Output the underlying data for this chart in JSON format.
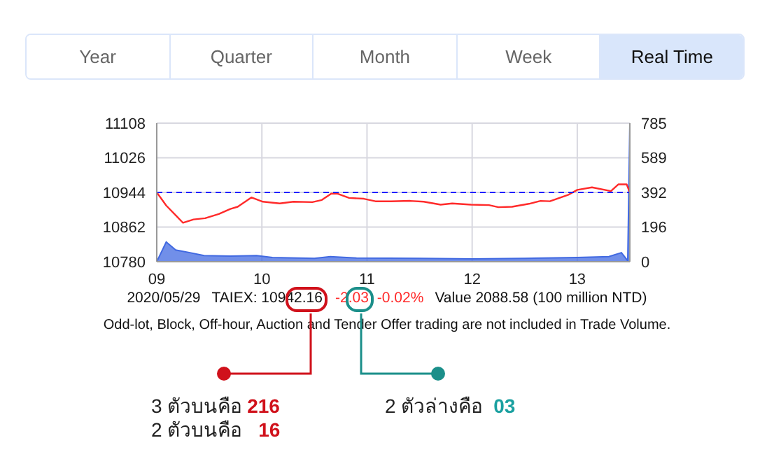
{
  "chart_data": {
    "type": "line",
    "series": [
      {
        "type": "line",
        "color": "#ff2a2a",
        "x": [
          9,
          9.09,
          9.25,
          9.35,
          9.46,
          9.59,
          9.7,
          9.77,
          9.9,
          10.01,
          10.17,
          10.3,
          10.48,
          10.57,
          10.66,
          10.72,
          10.83,
          10.97,
          11.08,
          11.23,
          11.41,
          11.54,
          11.7,
          11.81,
          11.99,
          12.16,
          12.25,
          12.38,
          12.54,
          12.65,
          12.74,
          12.92,
          13,
          13.14,
          13.32,
          13.39,
          13.47,
          13.5
        ],
        "values": [
          10944,
          10913,
          10872,
          10880,
          10883,
          10893,
          10905,
          10910,
          10932,
          10922,
          10918,
          10922,
          10921,
          10926,
          10941,
          10941,
          10931,
          10929,
          10923,
          10923,
          10924,
          10922,
          10915,
          10918,
          10915,
          10914,
          10909,
          10910,
          10917,
          10924,
          10923,
          10939,
          10950,
          10956,
          10947,
          10963,
          10963,
          10944
        ]
      },
      {
        "type": "area",
        "axis": "y2",
        "color": "#4169e1",
        "x": [
          9,
          9.09,
          9.18,
          9.3,
          9.45,
          9.7,
          9.95,
          10.1,
          10.5,
          10.65,
          10.9,
          11.5,
          12,
          12.5,
          13,
          13.3,
          13.42,
          13.48,
          13.5
        ],
        "values": [
          0,
          112,
          66,
          53,
          35,
          32,
          35,
          24,
          19,
          29,
          21,
          19,
          16,
          19,
          24,
          29,
          51,
          5,
          785
        ]
      }
    ],
    "xlim": [
      9,
      13.5
    ],
    "xticks": [
      {
        "value": 9,
        "label": "09"
      },
      10,
      11,
      12,
      13
    ],
    "ylim": [
      10780,
      11108
    ],
    "yticks": [
      10780,
      10862,
      10944,
      11026,
      11108
    ],
    "y2lim": [
      0,
      785
    ],
    "y2ticks": [
      0,
      196,
      392,
      589,
      785
    ],
    "grid": true,
    "ref_lines": [
      {
        "axis": "y",
        "value": 10944,
        "color": "#2020ff",
        "line_style": "dashed"
      }
    ],
    "annotations": [
      "Year",
      "Quarter",
      "Month",
      "Week",
      "Real Time",
      "2020/05/29",
      "TAIEX: 10942.16",
      "-2.03",
      "-0.02%",
      "Value 2088.58 (100 million NTD)",
      "Odd-lot, Block, Off-hour, Auction and Tender Offer trading are not included in Trade Volume.",
      "3 ตัวบนคือ",
      "216",
      "2 ตัวบนคือ",
      "16",
      "2 ตัวล่างคือ",
      "03"
    ]
  }
}
